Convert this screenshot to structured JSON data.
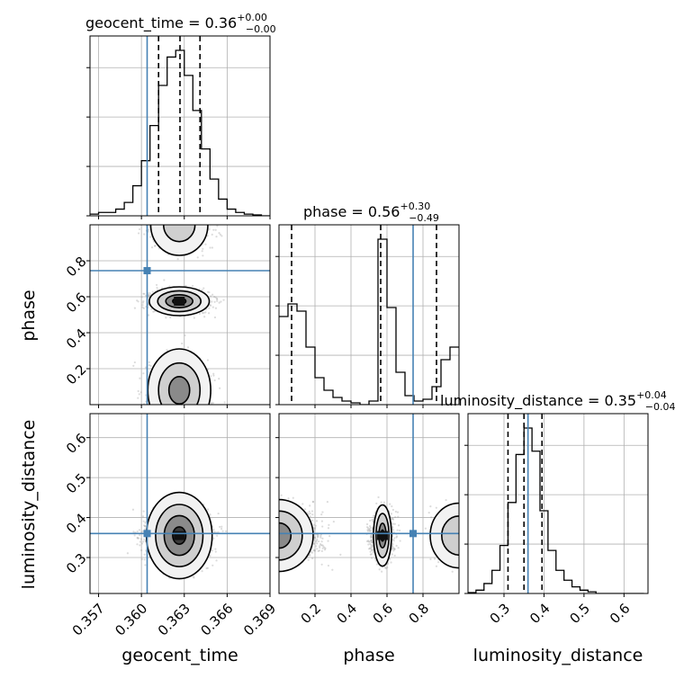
{
  "chart_data": {
    "type": "corner",
    "parameters": [
      "geocent_time",
      "phase",
      "luminosity_distance"
    ],
    "axis_labels": {
      "geocent_time": "geocent_time",
      "phase": "phase",
      "luminosity_distance": "luminosity_distance"
    },
    "titles": [
      {
        "param": "geocent_time",
        "label": "geocent_time",
        "median": "0.36",
        "plus": "+0.00",
        "minus": "−0.00"
      },
      {
        "param": "phase",
        "label": "phase",
        "median": "0.56",
        "plus": "+0.30",
        "minus": "−0.49"
      },
      {
        "param": "luminosity_distance",
        "label": "luminosity_distance",
        "median": "0.35",
        "plus": "+0.04",
        "minus": "−0.04"
      }
    ],
    "ranges": {
      "geocent_time": [
        0.3564,
        0.369
      ],
      "phase": [
        0.0,
        1.0
      ],
      "luminosity_distance": [
        0.21,
        0.66
      ]
    },
    "ticks": {
      "geocent_time": {
        "values": [
          0.357,
          0.36,
          0.363,
          0.366,
          0.369
        ],
        "labels": [
          "0.357",
          "0.360",
          "0.363",
          "0.366",
          "0.369"
        ]
      },
      "phase_x": {
        "values": [
          0.2,
          0.4,
          0.6,
          0.8
        ],
        "labels": [
          "0.2",
          "0.4",
          "0.6",
          "0.8"
        ]
      },
      "phase_y": {
        "values": [
          0.2,
          0.4,
          0.6,
          0.8
        ],
        "labels": [
          "0.2",
          "0.4",
          "0.6",
          "0.8"
        ]
      },
      "luminosity_distance_x": {
        "values": [
          0.3,
          0.4,
          0.5,
          0.6
        ],
        "labels": [
          "0.3",
          "0.4",
          "0.5",
          "0.6"
        ]
      },
      "luminosity_distance_y": {
        "values": [
          0.3,
          0.4,
          0.5,
          0.6
        ],
        "labels": [
          "0.3",
          "0.4",
          "0.5",
          "0.6"
        ]
      }
    },
    "truths": {
      "geocent_time": 0.3604,
      "phase": 0.745,
      "luminosity_distance": 0.36
    },
    "quantiles": {
      "geocent_time": [
        0.3612,
        0.3627,
        0.3641
      ],
      "phase": [
        0.07,
        0.565,
        0.875
      ],
      "luminosity_distance": [
        0.31,
        0.35,
        0.395
      ]
    },
    "histograms": {
      "geocent_time": {
        "edges": [
          0.3564,
          0.357,
          0.3576,
          0.3582,
          0.3588,
          0.3594,
          0.36,
          0.3606,
          0.3612,
          0.3618,
          0.3624,
          0.363,
          0.3636,
          0.3642,
          0.3648,
          0.3654,
          0.366,
          0.3666,
          0.3672,
          0.3678,
          0.3684,
          0.369
        ],
        "heights": [
          0.01,
          0.02,
          0.02,
          0.04,
          0.08,
          0.18,
          0.33,
          0.54,
          0.78,
          0.95,
          0.99,
          0.84,
          0.63,
          0.4,
          0.22,
          0.1,
          0.04,
          0.02,
          0.01,
          0.005,
          0.0
        ]
      },
      "phase": {
        "edges": [
          0.0,
          0.05,
          0.1,
          0.15,
          0.2,
          0.25,
          0.3,
          0.35,
          0.4,
          0.45,
          0.5,
          0.55,
          0.6,
          0.65,
          0.7,
          0.75,
          0.8,
          0.85,
          0.9,
          0.95,
          1.0
        ],
        "heights": [
          0.49,
          0.56,
          0.52,
          0.32,
          0.15,
          0.08,
          0.04,
          0.02,
          0.01,
          0.0,
          0.02,
          0.92,
          0.54,
          0.18,
          0.05,
          0.02,
          0.03,
          0.1,
          0.25,
          0.32
        ]
      },
      "luminosity_distance": {
        "edges": [
          0.21,
          0.23,
          0.25,
          0.27,
          0.29,
          0.31,
          0.33,
          0.35,
          0.37,
          0.39,
          0.41,
          0.43,
          0.45,
          0.47,
          0.49,
          0.51,
          0.53,
          0.55,
          0.57,
          0.59,
          0.61,
          0.63,
          0.65
        ],
        "heights": [
          0.005,
          0.02,
          0.06,
          0.14,
          0.29,
          0.55,
          0.84,
          1.0,
          0.86,
          0.5,
          0.26,
          0.14,
          0.08,
          0.04,
          0.02,
          0.01,
          0.0,
          0.0,
          0.0,
          0.0,
          0.0,
          0.0
        ]
      }
    },
    "modes_2d": {
      "geocent_time": {
        "center": 0.36265,
        "sd": 0.001
      },
      "phase": [
        {
          "center": 0.575,
          "sd": 0.03,
          "weight": 0.45
        },
        {
          "center": 0.08,
          "sd": 0.08,
          "weight": 0.35
        },
        {
          "center": 0.97,
          "sd": 0.05,
          "weight": 0.2
        }
      ],
      "luminosity_distance": {
        "center": 0.355,
        "sd": 0.03
      }
    },
    "grid": true
  }
}
